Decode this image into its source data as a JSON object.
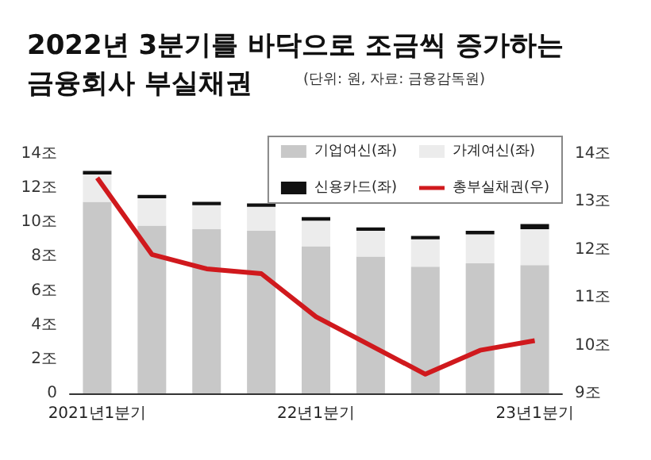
{
  "chart_data": {
    "type": "bar",
    "title": "2022년 3분기를 바닥으로 조금씩 증가하는\n금융회사 부실채권",
    "subtitle": "(단위: 원, 자료: 금융감독원)",
    "categories": [
      "2021년1분기",
      null,
      null,
      null,
      "22년1분기",
      null,
      null,
      null,
      "23년1분기"
    ],
    "stacked": true,
    "series": [
      {
        "name": "기업여신(좌)",
        "color": "#c8c8c8",
        "values": [
          11.2,
          9.8,
          9.6,
          9.5,
          8.6,
          8.0,
          7.4,
          7.6,
          7.5
        ]
      },
      {
        "name": "가계여신(좌)",
        "color": "#ececec",
        "values": [
          1.6,
          1.6,
          1.4,
          1.4,
          1.5,
          1.5,
          1.6,
          1.7,
          2.1
        ]
      },
      {
        "name": "신용카드(좌)",
        "color": "#111111",
        "values": [
          0.2,
          0.2,
          0.2,
          0.2,
          0.2,
          0.2,
          0.2,
          0.2,
          0.3
        ]
      },
      {
        "name": "총부실채권(우)",
        "type": "line",
        "axis": "y2",
        "color": "#d0191d",
        "values": [
          13.5,
          11.9,
          11.6,
          11.5,
          10.6,
          10.0,
          9.4,
          9.9,
          10.1
        ]
      }
    ],
    "ylim": [
      0,
      14
    ],
    "yticks": [
      0,
      {
        "value": 2,
        "label": "2조"
      },
      {
        "value": 4,
        "label": "4조"
      },
      {
        "value": 6,
        "label": "6조"
      },
      {
        "value": 8,
        "label": "8조"
      },
      {
        "value": 10,
        "label": "10조"
      },
      {
        "value": 12,
        "label": "12조"
      },
      {
        "value": 14,
        "label": "14조"
      }
    ],
    "y2lim": [
      9,
      14
    ],
    "y2ticks": [
      {
        "value": 9,
        "label": "9조"
      },
      {
        "value": 10,
        "label": "10조"
      },
      {
        "value": 11,
        "label": "11조"
      },
      {
        "value": 12,
        "label": "12조"
      },
      {
        "value": 13,
        "label": "13조"
      },
      {
        "value": 14,
        "label": "14조"
      }
    ],
    "legend": "top right",
    "marker": "none",
    "line_style": "solid"
  }
}
